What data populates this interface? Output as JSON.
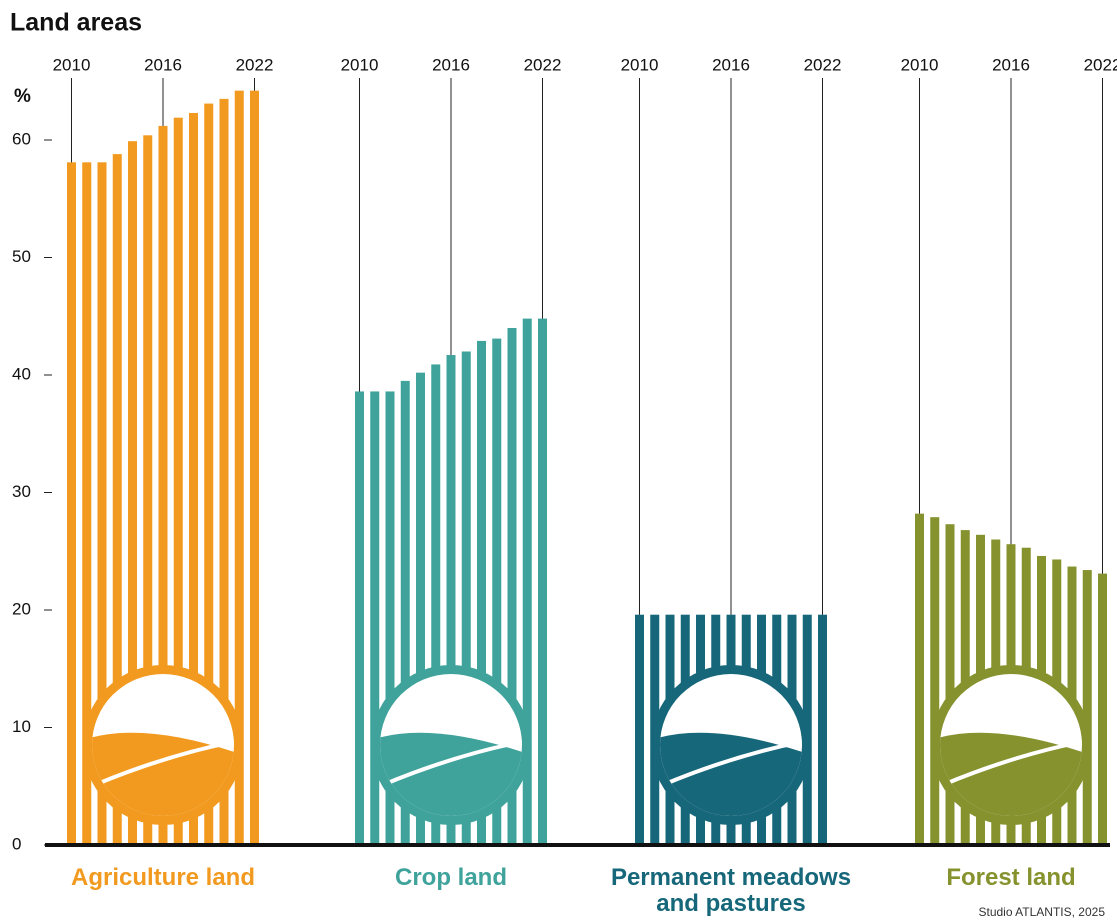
{
  "chart_data": {
    "type": "bar",
    "title": "Land areas",
    "y_label": "%",
    "categories": [
      "2010",
      null,
      null,
      null,
      null,
      null,
      "2016",
      null,
      null,
      null,
      null,
      null,
      "2022"
    ],
    "series": [
      {
        "name": "Agriculture land",
        "color": "#f29a1f",
        "values": [
          58.1,
          58.1,
          58.1,
          58.8,
          59.9,
          60.4,
          61.2,
          61.9,
          62.3,
          63.1,
          63.5,
          64.2,
          64.2
        ]
      },
      {
        "name": "Crop land",
        "color": "#3fa39c",
        "values": [
          38.6,
          38.6,
          38.6,
          39.5,
          40.2,
          40.9,
          41.7,
          42.0,
          42.9,
          43.1,
          44.0,
          44.8,
          44.8
        ]
      },
      {
        "name": "Permanent meadows and pastures",
        "color": "#17677a",
        "values": [
          19.6,
          19.6,
          19.6,
          19.6,
          19.6,
          19.6,
          19.6,
          19.6,
          19.6,
          19.6,
          19.6,
          19.6,
          19.6
        ]
      },
      {
        "name": "Forest land",
        "color": "#86922e",
        "values": [
          28.2,
          27.9,
          27.3,
          26.8,
          26.4,
          26.0,
          25.6,
          25.3,
          24.6,
          24.3,
          23.7,
          23.4,
          23.1
        ]
      }
    ],
    "ylim": [
      0,
      65
    ],
    "yticks": [
      0,
      10,
      20,
      30,
      40,
      50,
      60
    ],
    "grid": false,
    "source": "Studio ATLANTIS, 2025"
  }
}
